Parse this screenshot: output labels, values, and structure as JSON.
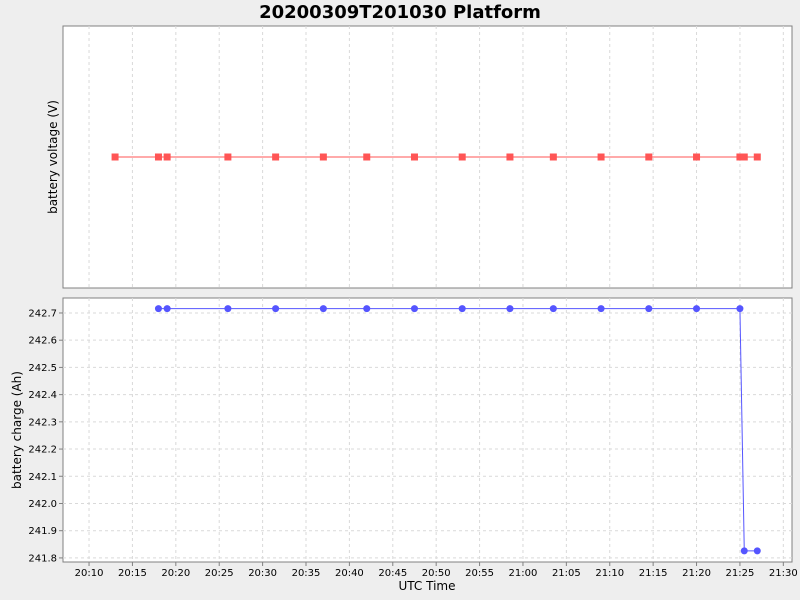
{
  "chart_data": {
    "type": "line",
    "title": "20200309T201030 Platform",
    "xlabel": "UTC Time",
    "x_ticks": [
      "20:10",
      "20:15",
      "20:20",
      "20:25",
      "20:30",
      "20:35",
      "20:40",
      "20:45",
      "20:50",
      "20:55",
      "21:00",
      "21:05",
      "21:10",
      "21:15",
      "21:20",
      "21:25",
      "21:30"
    ],
    "xlim": [
      "20:07",
      "21:31"
    ],
    "grid": true,
    "panels": [
      {
        "ylabel": "battery voltage (V)",
        "color": "#ff5555",
        "marker": "square",
        "y_ticks": [],
        "ylim": [
          0,
          1
        ],
        "series": [
          {
            "x": [
              "20:13",
              "20:18",
              "20:19",
              "20:26",
              "20:31.5",
              "20:37",
              "20:42",
              "20:47.5",
              "20:53",
              "20:58.5",
              "21:03.5",
              "21:09",
              "21:14.5",
              "21:20",
              "21:25",
              "21:25.5",
              "21:27"
            ],
            "y": [
              0.5,
              0.5,
              0.5,
              0.5,
              0.5,
              0.5,
              0.5,
              0.5,
              0.5,
              0.5,
              0.5,
              0.5,
              0.5,
              0.5,
              0.5,
              0.5,
              0.5
            ]
          }
        ]
      },
      {
        "ylabel": "battery charge (Ah)",
        "color": "#5555ff",
        "marker": "circle",
        "y_ticks": [
          "241.8",
          "241.9",
          "242.0",
          "242.1",
          "242.2",
          "242.3",
          "242.4",
          "242.5",
          "242.6",
          "242.7"
        ],
        "ylim": [
          241.785,
          242.755
        ],
        "series": [
          {
            "x": [
              "20:18",
              "20:19",
              "20:26",
              "20:31.5",
              "20:37",
              "20:42",
              "20:47.5",
              "20:53",
              "20:58.5",
              "21:03.5",
              "21:09",
              "21:14.5",
              "21:20",
              "21:25",
              "21:25.5",
              "21:27"
            ],
            "y": [
              242.716,
              242.716,
              242.716,
              242.716,
              242.716,
              242.716,
              242.716,
              242.716,
              242.716,
              242.716,
              242.716,
              242.716,
              242.716,
              242.716,
              241.826,
              241.826
            ]
          }
        ]
      }
    ]
  }
}
